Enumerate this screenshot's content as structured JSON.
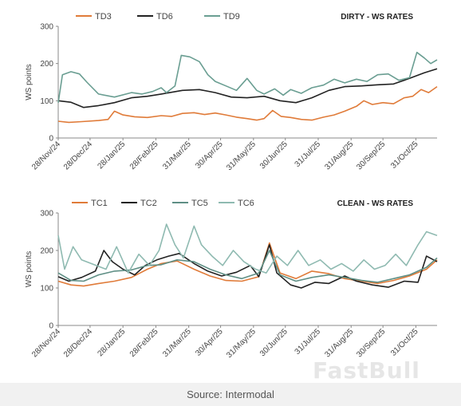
{
  "source": "Source: Intermodal",
  "watermark": "FastBull",
  "chart_data": [
    {
      "type": "line",
      "title": "DIRTY - WS RATES",
      "ylabel": "WS points",
      "xlabel": "",
      "ylim": [
        0,
        300
      ],
      "yticks": [
        0,
        100,
        200,
        300
      ],
      "grid": false,
      "legend_position": "top",
      "xlim": [
        "2024-11-28",
        "2025-11-20"
      ],
      "xticks": [
        "2024-11-28",
        "2024-12-28",
        "2025-01-28",
        "2025-02-28",
        "2025-03-31",
        "2025-04-30",
        "2025-05-31",
        "2025-06-30",
        "2025-07-31",
        "2025-08-31",
        "2025-09-30",
        "2025-10-31"
      ],
      "xtick_labels": [
        "28/Nov/24",
        "28/Dec/24",
        "28/Jan/25",
        "28/Feb/25",
        "31/Mar/25",
        "30/Apr/25",
        "31/May/25",
        "30/Jun/25",
        "31/Jul/25",
        "31/Aug/25",
        "30/Sep/25",
        "31/Oct/25"
      ],
      "series": [
        {
          "name": "TD3",
          "color": "#e07b39",
          "points": [
            [
              "2024-11-28",
              45
            ],
            [
              "2024-12-08",
              42
            ],
            [
              "2024-12-20",
              44
            ],
            [
              "2025-01-05",
              47
            ],
            [
              "2025-01-14",
              50
            ],
            [
              "2025-01-20",
              72
            ],
            [
              "2025-01-28",
              62
            ],
            [
              "2025-02-08",
              57
            ],
            [
              "2025-02-20",
              55
            ],
            [
              "2025-03-05",
              60
            ],
            [
              "2025-03-15",
              58
            ],
            [
              "2025-03-25",
              66
            ],
            [
              "2025-04-05",
              68
            ],
            [
              "2025-04-15",
              63
            ],
            [
              "2025-04-25",
              67
            ],
            [
              "2025-05-05",
              62
            ],
            [
              "2025-05-15",
              56
            ],
            [
              "2025-05-25",
              52
            ],
            [
              "2025-06-03",
              48
            ],
            [
              "2025-06-10",
              52
            ],
            [
              "2025-06-18",
              74
            ],
            [
              "2025-06-26",
              58
            ],
            [
              "2025-07-05",
              55
            ],
            [
              "2025-07-15",
              50
            ],
            [
              "2025-07-25",
              48
            ],
            [
              "2025-08-05",
              56
            ],
            [
              "2025-08-15",
              62
            ],
            [
              "2025-08-25",
              72
            ],
            [
              "2025-09-05",
              85
            ],
            [
              "2025-09-12",
              100
            ],
            [
              "2025-09-20",
              90
            ],
            [
              "2025-09-30",
              95
            ],
            [
              "2025-10-10",
              92
            ],
            [
              "2025-10-20",
              108
            ],
            [
              "2025-10-28",
              112
            ],
            [
              "2025-11-05",
              130
            ],
            [
              "2025-11-12",
              122
            ],
            [
              "2025-11-20",
              138
            ]
          ]
        },
        {
          "name": "TD6",
          "color": "#222222",
          "points": [
            [
              "2024-11-28",
              100
            ],
            [
              "2024-12-10",
              96
            ],
            [
              "2024-12-22",
              82
            ],
            [
              "2025-01-05",
              87
            ],
            [
              "2025-01-20",
              95
            ],
            [
              "2025-02-05",
              108
            ],
            [
              "2025-02-20",
              112
            ],
            [
              "2025-03-05",
              118
            ],
            [
              "2025-03-25",
              128
            ],
            [
              "2025-04-10",
              130
            ],
            [
              "2025-04-25",
              122
            ],
            [
              "2025-05-10",
              110
            ],
            [
              "2025-05-25",
              108
            ],
            [
              "2025-06-10",
              112
            ],
            [
              "2025-06-25",
              100
            ],
            [
              "2025-07-10",
              95
            ],
            [
              "2025-07-25",
              108
            ],
            [
              "2025-08-10",
              128
            ],
            [
              "2025-08-25",
              138
            ],
            [
              "2025-09-10",
              140
            ],
            [
              "2025-09-25",
              143
            ],
            [
              "2025-10-10",
              145
            ],
            [
              "2025-10-25",
              160
            ],
            [
              "2025-11-08",
              175
            ],
            [
              "2025-11-20",
              186
            ]
          ]
        },
        {
          "name": "TD9",
          "color": "#6a9e92",
          "points": [
            [
              "2024-11-28",
              95
            ],
            [
              "2024-12-02",
              170
            ],
            [
              "2024-12-10",
              178
            ],
            [
              "2024-12-18",
              172
            ],
            [
              "2024-12-25",
              150
            ],
            [
              "2025-01-05",
              118
            ],
            [
              "2025-01-20",
              110
            ],
            [
              "2025-02-05",
              122
            ],
            [
              "2025-02-15",
              118
            ],
            [
              "2025-02-25",
              125
            ],
            [
              "2025-03-05",
              135
            ],
            [
              "2025-03-10",
              122
            ],
            [
              "2025-03-18",
              140
            ],
            [
              "2025-03-24",
              222
            ],
            [
              "2025-04-01",
              218
            ],
            [
              "2025-04-10",
              205
            ],
            [
              "2025-04-18",
              170
            ],
            [
              "2025-04-25",
              152
            ],
            [
              "2025-05-05",
              140
            ],
            [
              "2025-05-15",
              128
            ],
            [
              "2025-05-25",
              160
            ],
            [
              "2025-06-03",
              128
            ],
            [
              "2025-06-10",
              118
            ],
            [
              "2025-06-20",
              132
            ],
            [
              "2025-06-28",
              115
            ],
            [
              "2025-07-05",
              130
            ],
            [
              "2025-07-15",
              120
            ],
            [
              "2025-07-25",
              135
            ],
            [
              "2025-08-05",
              142
            ],
            [
              "2025-08-15",
              158
            ],
            [
              "2025-08-25",
              148
            ],
            [
              "2025-09-05",
              158
            ],
            [
              "2025-09-15",
              152
            ],
            [
              "2025-09-25",
              170
            ],
            [
              "2025-10-05",
              172
            ],
            [
              "2025-10-15",
              155
            ],
            [
              "2025-10-25",
              162
            ],
            [
              "2025-11-01",
              230
            ],
            [
              "2025-11-08",
              215
            ],
            [
              "2025-11-14",
              200
            ],
            [
              "2025-11-20",
              210
            ]
          ]
        }
      ]
    },
    {
      "type": "line",
      "title": "CLEAN - WS RATES",
      "ylabel": "WS points",
      "xlabel": "",
      "ylim": [
        0,
        300
      ],
      "yticks": [
        0,
        100,
        200,
        300
      ],
      "grid": false,
      "legend_position": "top",
      "xlim": [
        "2024-11-28",
        "2025-11-20"
      ],
      "xticks": [
        "2024-11-28",
        "2024-12-28",
        "2025-01-28",
        "2025-02-28",
        "2025-03-31",
        "2025-04-30",
        "2025-05-31",
        "2025-06-30",
        "2025-07-31",
        "2025-08-31",
        "2025-09-30",
        "2025-10-31"
      ],
      "xtick_labels": [
        "28/Nov/24",
        "28/Dec/24",
        "28/Jan/25",
        "28/Feb/25",
        "31/Mar/25",
        "30/Apr/25",
        "31/May/25",
        "30/Jun/25",
        "31/Jul/25",
        "31/Aug/25",
        "30/Sep/25",
        "31/Oct/25"
      ],
      "series": [
        {
          "name": "TC1",
          "color": "#e07b39",
          "points": [
            [
              "2024-11-28",
              118
            ],
            [
              "2024-12-10",
              108
            ],
            [
              "2024-12-22",
              105
            ],
            [
              "2025-01-05",
              112
            ],
            [
              "2025-01-20",
              118
            ],
            [
              "2025-02-05",
              128
            ],
            [
              "2025-02-20",
              150
            ],
            [
              "2025-03-05",
              165
            ],
            [
              "2025-03-20",
              172
            ],
            [
              "2025-04-05",
              150
            ],
            [
              "2025-04-20",
              132
            ],
            [
              "2025-05-05",
              120
            ],
            [
              "2025-05-20",
              118
            ],
            [
              "2025-06-05",
              130
            ],
            [
              "2025-06-15",
              220
            ],
            [
              "2025-06-25",
              140
            ],
            [
              "2025-07-10",
              125
            ],
            [
              "2025-07-25",
              145
            ],
            [
              "2025-08-10",
              138
            ],
            [
              "2025-08-25",
              125
            ],
            [
              "2025-09-10",
              118
            ],
            [
              "2025-09-25",
              112
            ],
            [
              "2025-10-10",
              120
            ],
            [
              "2025-10-25",
              132
            ],
            [
              "2025-11-10",
              150
            ],
            [
              "2025-11-20",
              175
            ]
          ]
        },
        {
          "name": "TC2",
          "color": "#222222",
          "points": [
            [
              "2024-11-28",
              130
            ],
            [
              "2024-12-08",
              118
            ],
            [
              "2024-12-20",
              128
            ],
            [
              "2025-01-02",
              145
            ],
            [
              "2025-01-10",
              200
            ],
            [
              "2025-01-18",
              170
            ],
            [
              "2025-01-28",
              150
            ],
            [
              "2025-02-08",
              135
            ],
            [
              "2025-02-18",
              160
            ],
            [
              "2025-03-01",
              175
            ],
            [
              "2025-03-12",
              185
            ],
            [
              "2025-03-22",
              192
            ],
            [
              "2025-04-05",
              165
            ],
            [
              "2025-04-18",
              145
            ],
            [
              "2025-05-01",
              132
            ],
            [
              "2025-05-15",
              142
            ],
            [
              "2025-05-28",
              160
            ],
            [
              "2025-06-05",
              130
            ],
            [
              "2025-06-15",
              215
            ],
            [
              "2025-06-22",
              140
            ],
            [
              "2025-07-05",
              108
            ],
            [
              "2025-07-15",
              100
            ],
            [
              "2025-07-28",
              115
            ],
            [
              "2025-08-10",
              112
            ],
            [
              "2025-08-25",
              132
            ],
            [
              "2025-09-05",
              118
            ],
            [
              "2025-09-20",
              108
            ],
            [
              "2025-10-05",
              102
            ],
            [
              "2025-10-20",
              118
            ],
            [
              "2025-11-02",
              115
            ],
            [
              "2025-11-10",
              185
            ],
            [
              "2025-11-20",
              170
            ]
          ]
        },
        {
          "name": "TC5",
          "color": "#5f8f85",
          "points": [
            [
              "2024-11-28",
              140
            ],
            [
              "2024-12-10",
              120
            ],
            [
              "2024-12-22",
              118
            ],
            [
              "2025-01-05",
              135
            ],
            [
              "2025-01-20",
              145
            ],
            [
              "2025-02-05",
              148
            ],
            [
              "2025-02-20",
              160
            ],
            [
              "2025-03-05",
              162
            ],
            [
              "2025-03-20",
              175
            ],
            [
              "2025-04-05",
              170
            ],
            [
              "2025-04-20",
              150
            ],
            [
              "2025-05-05",
              135
            ],
            [
              "2025-05-20",
              125
            ],
            [
              "2025-06-05",
              140
            ],
            [
              "2025-06-15",
              200
            ],
            [
              "2025-06-25",
              135
            ],
            [
              "2025-07-10",
              118
            ],
            [
              "2025-07-25",
              128
            ],
            [
              "2025-08-10",
              135
            ],
            [
              "2025-08-25",
              128
            ],
            [
              "2025-09-10",
              120
            ],
            [
              "2025-09-25",
              115
            ],
            [
              "2025-10-10",
              125
            ],
            [
              "2025-10-25",
              135
            ],
            [
              "2025-11-10",
              155
            ],
            [
              "2025-11-20",
              180
            ]
          ]
        },
        {
          "name": "TC6",
          "color": "#8fbab1",
          "points": [
            [
              "2024-11-28",
              240
            ],
            [
              "2024-12-04",
              150
            ],
            [
              "2024-12-12",
              210
            ],
            [
              "2024-12-20",
              175
            ],
            [
              "2025-01-01",
              162
            ],
            [
              "2025-01-12",
              150
            ],
            [
              "2025-01-22",
              210
            ],
            [
              "2025-02-02",
              140
            ],
            [
              "2025-02-12",
              190
            ],
            [
              "2025-02-22",
              160
            ],
            [
              "2025-03-03",
              200
            ],
            [
              "2025-03-10",
              270
            ],
            [
              "2025-03-18",
              215
            ],
            [
              "2025-03-26",
              180
            ],
            [
              "2025-04-05",
              265
            ],
            [
              "2025-04-12",
              215
            ],
            [
              "2025-04-22",
              185
            ],
            [
              "2025-05-02",
              160
            ],
            [
              "2025-05-12",
              200
            ],
            [
              "2025-05-22",
              170
            ],
            [
              "2025-06-02",
              150
            ],
            [
              "2025-06-12",
              140
            ],
            [
              "2025-06-22",
              185
            ],
            [
              "2025-07-02",
              160
            ],
            [
              "2025-07-12",
              200
            ],
            [
              "2025-07-22",
              160
            ],
            [
              "2025-08-02",
              175
            ],
            [
              "2025-08-12",
              150
            ],
            [
              "2025-08-22",
              165
            ],
            [
              "2025-09-02",
              145
            ],
            [
              "2025-09-12",
              175
            ],
            [
              "2025-09-22",
              150
            ],
            [
              "2025-10-02",
              160
            ],
            [
              "2025-10-12",
              190
            ],
            [
              "2025-10-22",
              160
            ],
            [
              "2025-11-02",
              215
            ],
            [
              "2025-11-10",
              250
            ],
            [
              "2025-11-20",
              240
            ]
          ]
        }
      ]
    }
  ]
}
